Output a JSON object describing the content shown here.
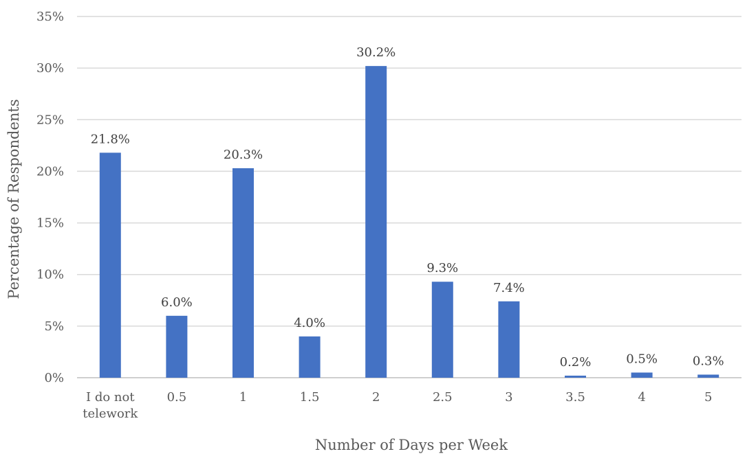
{
  "chart_data": {
    "type": "bar",
    "title": "",
    "xlabel": "Number of Days per Week",
    "ylabel": "Percentage of Respondents",
    "categories": [
      "I do not telework",
      "0.5",
      "1",
      "1.5",
      "2",
      "2.5",
      "3",
      "3.5",
      "4",
      "5"
    ],
    "values": [
      21.8,
      6.0,
      20.3,
      4.0,
      30.2,
      9.3,
      7.4,
      0.2,
      0.5,
      0.3
    ],
    "data_labels": [
      "21.8%",
      "6.0%",
      "20.3%",
      "4.0%",
      "30.2%",
      "9.3%",
      "7.4%",
      "0.2%",
      "0.5%",
      "0.3%"
    ],
    "ylim": [
      0,
      35
    ],
    "yticks": [
      0,
      5,
      10,
      15,
      20,
      25,
      30,
      35
    ],
    "ytick_labels": [
      "0%",
      "5%",
      "10%",
      "15%",
      "20%",
      "25%",
      "30%",
      "35%"
    ],
    "grid": true,
    "legend": "none",
    "bar_color": "#4472C4"
  }
}
